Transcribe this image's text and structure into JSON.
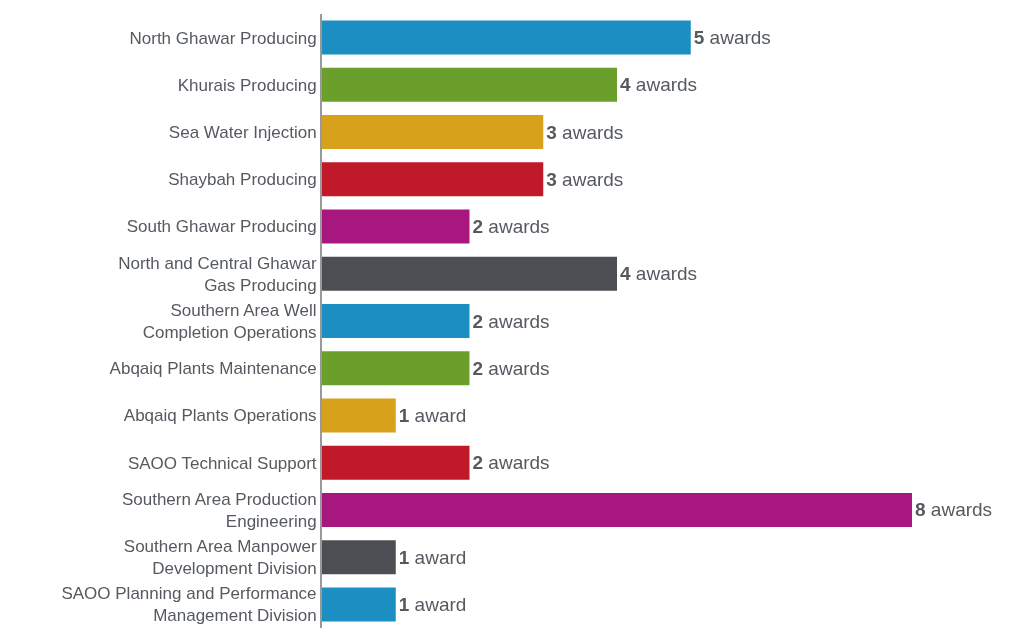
{
  "chart_data": {
    "type": "bar",
    "orientation": "horizontal",
    "categories": [
      "North Ghawar Producing",
      "Khurais Producing",
      "Sea Water Injection",
      "Shaybah Producing",
      "South Ghawar Producing",
      "North and Central Ghawar\nGas Producing",
      "Southern Area Well\nCompletion Operations",
      "Abqaiq Plants Maintenance",
      "Abqaiq Plants Operations",
      "SAOO Technical Support",
      "Southern Area Production\nEngineering",
      "Southern Area Manpower\nDevelopment Division",
      "SAOO Planning and Performance\nManagement Division"
    ],
    "values": [
      5,
      4,
      3,
      3,
      2,
      4,
      2,
      2,
      1,
      2,
      8,
      1,
      1
    ],
    "colors": [
      "#1b8fc2",
      "#6a9f2c",
      "#d8a11b",
      "#c01a2a",
      "#a8177f",
      "#4b4e53",
      "#1b8fc2",
      "#6a9f2c",
      "#d8a11b",
      "#c01a2a",
      "#a8177f",
      "#4b4e53",
      "#1b8fc2"
    ],
    "value_labels": [
      "5 awards",
      "4 awards",
      "3 awards",
      "3 awards",
      "2 awards",
      "4 awards",
      "2 awards",
      "2 awards",
      "1 award",
      "2 awards",
      "8 awards",
      "1 award",
      "1 award"
    ],
    "xlim": [
      0,
      8
    ],
    "tick_labels": "y"
  }
}
